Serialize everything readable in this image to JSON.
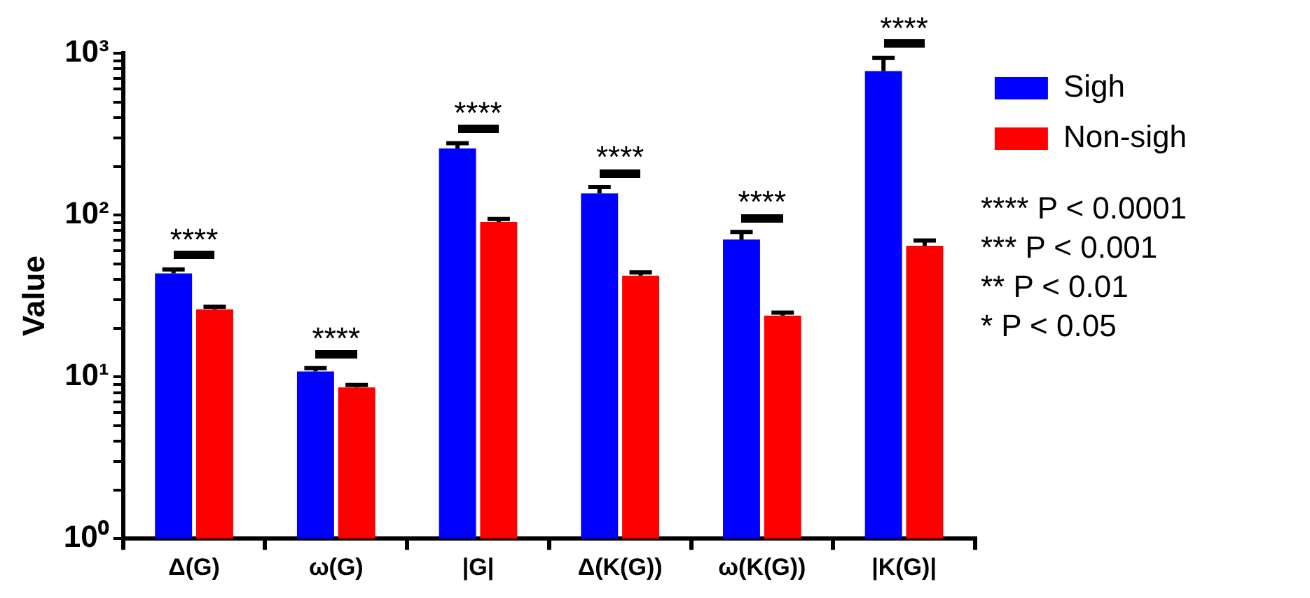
{
  "chart_data": {
    "type": "bar",
    "ylabel": "Value",
    "categories": [
      "Δ(G)",
      "ω(G)",
      "|G|",
      "Δ(K(G))",
      "ω(K(G))",
      "|K(G)|"
    ],
    "series": [
      {
        "name": "Sigh",
        "color": "#0000ff",
        "values": [
          43.5,
          10.8,
          258,
          136,
          70.6,
          776
        ],
        "errors": [
          2.6,
          0.5,
          20,
          13,
          8,
          160
        ]
      },
      {
        "name": "Non-sigh",
        "color": "#ff0000",
        "values": [
          26.1,
          8.6,
          90.6,
          42.2,
          23.9,
          64.6
        ],
        "errors": [
          1,
          0.3,
          4,
          2,
          1,
          5
        ]
      }
    ],
    "log": "y",
    "ylim": [
      1,
      1000
    ],
    "yticks": [
      {
        "value": 1,
        "label": "10⁰"
      },
      {
        "value": 2,
        "label": null
      },
      {
        "value": 3,
        "label": null
      },
      {
        "value": 4,
        "label": null
      },
      {
        "value": 5,
        "label": null
      },
      {
        "value": 6,
        "label": null
      },
      {
        "value": 7,
        "label": null
      },
      {
        "value": 8,
        "label": null
      },
      {
        "value": 9,
        "label": null
      },
      {
        "value": 10,
        "label": "10¹"
      },
      {
        "value": 20,
        "label": null
      },
      {
        "value": 30,
        "label": null
      },
      {
        "value": 40,
        "label": null
      },
      {
        "value": 50,
        "label": null
      },
      {
        "value": 60,
        "label": null
      },
      {
        "value": 70,
        "label": null
      },
      {
        "value": 80,
        "label": null
      },
      {
        "value": 90,
        "label": null
      },
      {
        "value": 100,
        "label": "10²"
      },
      {
        "value": 200,
        "label": null
      },
      {
        "value": 300,
        "label": null
      },
      {
        "value": 400,
        "label": null
      },
      {
        "value": 500,
        "label": null
      },
      {
        "value": 600,
        "label": null
      },
      {
        "value": 700,
        "label": null
      },
      {
        "value": 800,
        "label": null
      },
      {
        "value": 900,
        "label": null
      },
      {
        "value": 1000,
        "label": "10³"
      }
    ],
    "grid": false,
    "legend": "right",
    "annotations": [
      "****",
      "****",
      "****",
      "****",
      "****",
      "****",
      "**** P < 0.0001",
      "*** P < 0.001",
      "** P < 0.01",
      "* P < 0.05"
    ]
  }
}
